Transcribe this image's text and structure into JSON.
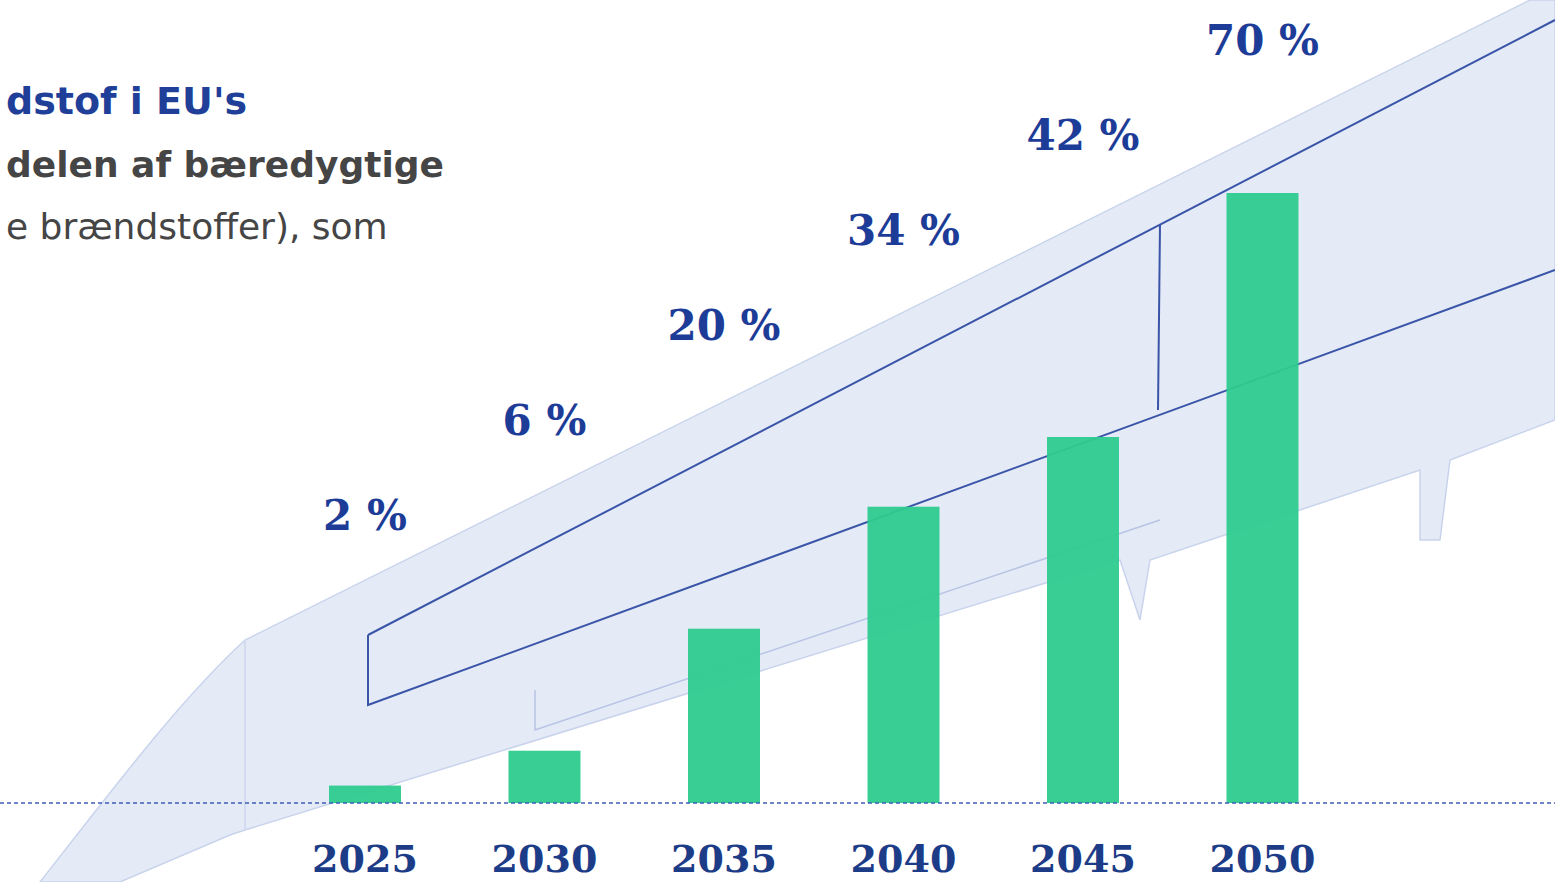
{
  "chart_data": {
    "type": "bar",
    "title": "dstof i EU's",
    "subtitle": [
      "delen af bæredygtige",
      "e brændstoffer), som"
    ],
    "categories": [
      "2025",
      "2030",
      "2035",
      "2040",
      "2045",
      "2050"
    ],
    "values": [
      2,
      6,
      20,
      34,
      42,
      70
    ],
    "value_labels": [
      "2 %",
      "6 %",
      "20 %",
      "34 %",
      "42 %",
      "70 %"
    ],
    "color": "#2ecb8e",
    "ylim": [
      0,
      70
    ],
    "grid": false,
    "data_labels": true,
    "tick_labels": "x"
  }
}
